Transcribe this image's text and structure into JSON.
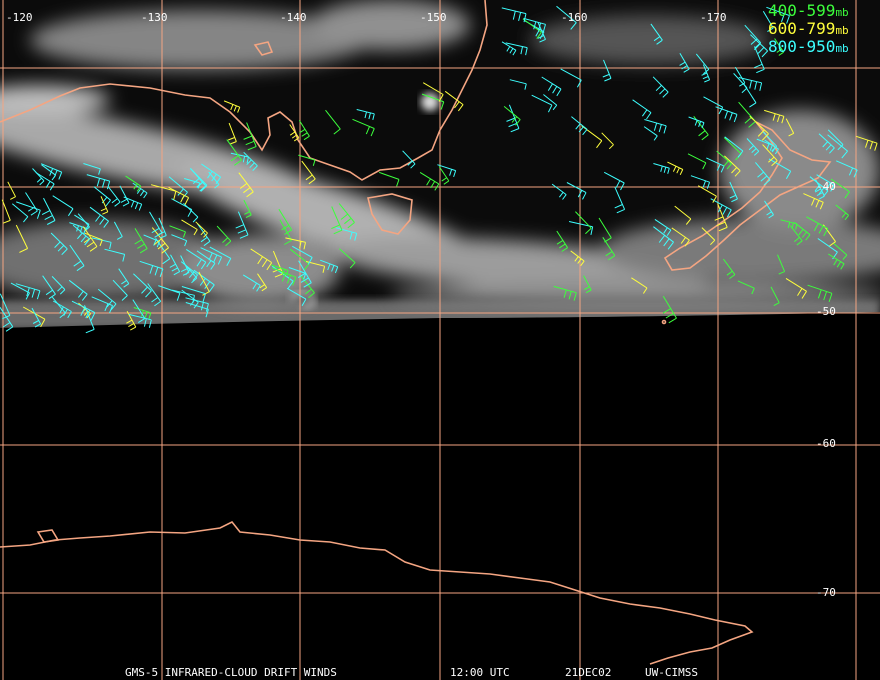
{
  "longitude_labels": [
    "-120",
    "-130",
    "-140",
    "-150",
    "-160",
    "-170"
  ],
  "latitude_labels": [
    "-40",
    "-50",
    "-60",
    "-70"
  ],
  "legend": [
    {
      "range": "400-599",
      "unit": "mb"
    },
    {
      "range": "600-799",
      "unit": "mb"
    },
    {
      "range": "800-950",
      "unit": "mb"
    }
  ],
  "footer": {
    "product": "GMS-5 INFRARED-CLOUD DRIFT WINDS",
    "time": "12:00 UTC",
    "date": "21DEC02",
    "source": "UW-CIMSS"
  }
}
